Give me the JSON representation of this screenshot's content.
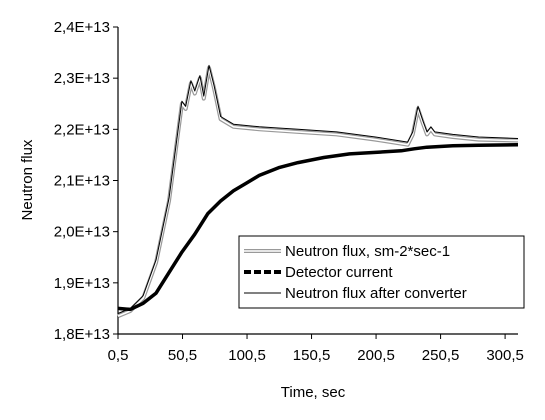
{
  "chart_data": {
    "type": "line",
    "title": "",
    "xlabel": "Time, sec",
    "ylabel": "Neutron flux",
    "xlim": [
      0.5,
      310.5
    ],
    "ylim": [
      18000000000000.0,
      24000000000000.0
    ],
    "x_ticks": [
      0.5,
      50.5,
      100.5,
      150.5,
      200.5,
      250.5,
      300.5
    ],
    "x_tick_labels": [
      "0,5",
      "50,5",
      "100,5",
      "150,5",
      "200,5",
      "250,5",
      "300,5"
    ],
    "y_ticks": [
      18000000000000.0,
      19000000000000.0,
      20000000000000.0,
      21000000000000.0,
      22000000000000.0,
      23000000000000.0,
      24000000000000.0
    ],
    "y_tick_labels": [
      "1,8E+13",
      "1,9E+13",
      "2,0E+13",
      "2,1E+13",
      "2,2E+13",
      "2,3E+13",
      "2,4E+13"
    ],
    "grid": false,
    "legend_position": "bottom-right",
    "series": [
      {
        "name": "Neutron flux, sm-2*sec-1",
        "style": "double-light",
        "color": "#999999",
        "points": [
          [
            0.5,
            18350000000000.0
          ],
          [
            10,
            18450000000000.0
          ],
          [
            20,
            18700000000000.0
          ],
          [
            30,
            19400000000000.0
          ],
          [
            40,
            20600000000000.0
          ],
          [
            50,
            22500000000000.0
          ],
          [
            53,
            22400000000000.0
          ],
          [
            57,
            22900000000000.0
          ],
          [
            60,
            22700000000000.0
          ],
          [
            64,
            23000000000000.0
          ],
          [
            67,
            22600000000000.0
          ],
          [
            71,
            23200000000000.0
          ],
          [
            75,
            22800000000000.0
          ],
          [
            80,
            22200000000000.0
          ],
          [
            90,
            22050000000000.0
          ],
          [
            110,
            22000000000000.0
          ],
          [
            140,
            21950000000000.0
          ],
          [
            170,
            21900000000000.0
          ],
          [
            200,
            21800000000000.0
          ],
          [
            225,
            21700000000000.0
          ],
          [
            229,
            21900000000000.0
          ],
          [
            233,
            22400000000000.0
          ],
          [
            237,
            22100000000000.0
          ],
          [
            240,
            21900000000000.0
          ],
          [
            243,
            22000000000000.0
          ],
          [
            246,
            21900000000000.0
          ],
          [
            260,
            21850000000000.0
          ],
          [
            280,
            21800000000000.0
          ],
          [
            310.5,
            21780000000000.0
          ]
        ]
      },
      {
        "name": "Detector current",
        "style": "dashed-bold",
        "color": "#000000",
        "points": [
          [
            0.5,
            18500000000000.0
          ],
          [
            10,
            18480000000000.0
          ],
          [
            20,
            18600000000000.0
          ],
          [
            30,
            18800000000000.0
          ],
          [
            40,
            19200000000000.0
          ],
          [
            50,
            19600000000000.0
          ],
          [
            60,
            19950000000000.0
          ],
          [
            70,
            20350000000000.0
          ],
          [
            80,
            20600000000000.0
          ],
          [
            90,
            20800000000000.0
          ],
          [
            100,
            20950000000000.0
          ],
          [
            110,
            21100000000000.0
          ],
          [
            125,
            21250000000000.0
          ],
          [
            140,
            21350000000000.0
          ],
          [
            160,
            21450000000000.0
          ],
          [
            180,
            21520000000000.0
          ],
          [
            200,
            21550000000000.0
          ],
          [
            220,
            21580000000000.0
          ],
          [
            230,
            21620000000000.0
          ],
          [
            240,
            21650000000000.0
          ],
          [
            260,
            21680000000000.0
          ],
          [
            280,
            21690000000000.0
          ],
          [
            310.5,
            21700000000000.0
          ]
        ]
      },
      {
        "name": "Neutron flux after converter",
        "style": "thin-solid",
        "color": "#000000",
        "points": [
          [
            0.5,
            18400000000000.0
          ],
          [
            10,
            18500000000000.0
          ],
          [
            20,
            18750000000000.0
          ],
          [
            30,
            19450000000000.0
          ],
          [
            40,
            20650000000000.0
          ],
          [
            50,
            22550000000000.0
          ],
          [
            53,
            22450000000000.0
          ],
          [
            57,
            22950000000000.0
          ],
          [
            60,
            22750000000000.0
          ],
          [
            64,
            23050000000000.0
          ],
          [
            67,
            22650000000000.0
          ],
          [
            71,
            23250000000000.0
          ],
          [
            75,
            22850000000000.0
          ],
          [
            80,
            22250000000000.0
          ],
          [
            90,
            22100000000000.0
          ],
          [
            110,
            22050000000000.0
          ],
          [
            140,
            22000000000000.0
          ],
          [
            170,
            21950000000000.0
          ],
          [
            200,
            21850000000000.0
          ],
          [
            225,
            21750000000000.0
          ],
          [
            229,
            21950000000000.0
          ],
          [
            233,
            22450000000000.0
          ],
          [
            237,
            22150000000000.0
          ],
          [
            240,
            21950000000000.0
          ],
          [
            243,
            22050000000000.0
          ],
          [
            246,
            21950000000000.0
          ],
          [
            260,
            21900000000000.0
          ],
          [
            280,
            21850000000000.0
          ],
          [
            310.5,
            21820000000000.0
          ]
        ]
      }
    ]
  }
}
